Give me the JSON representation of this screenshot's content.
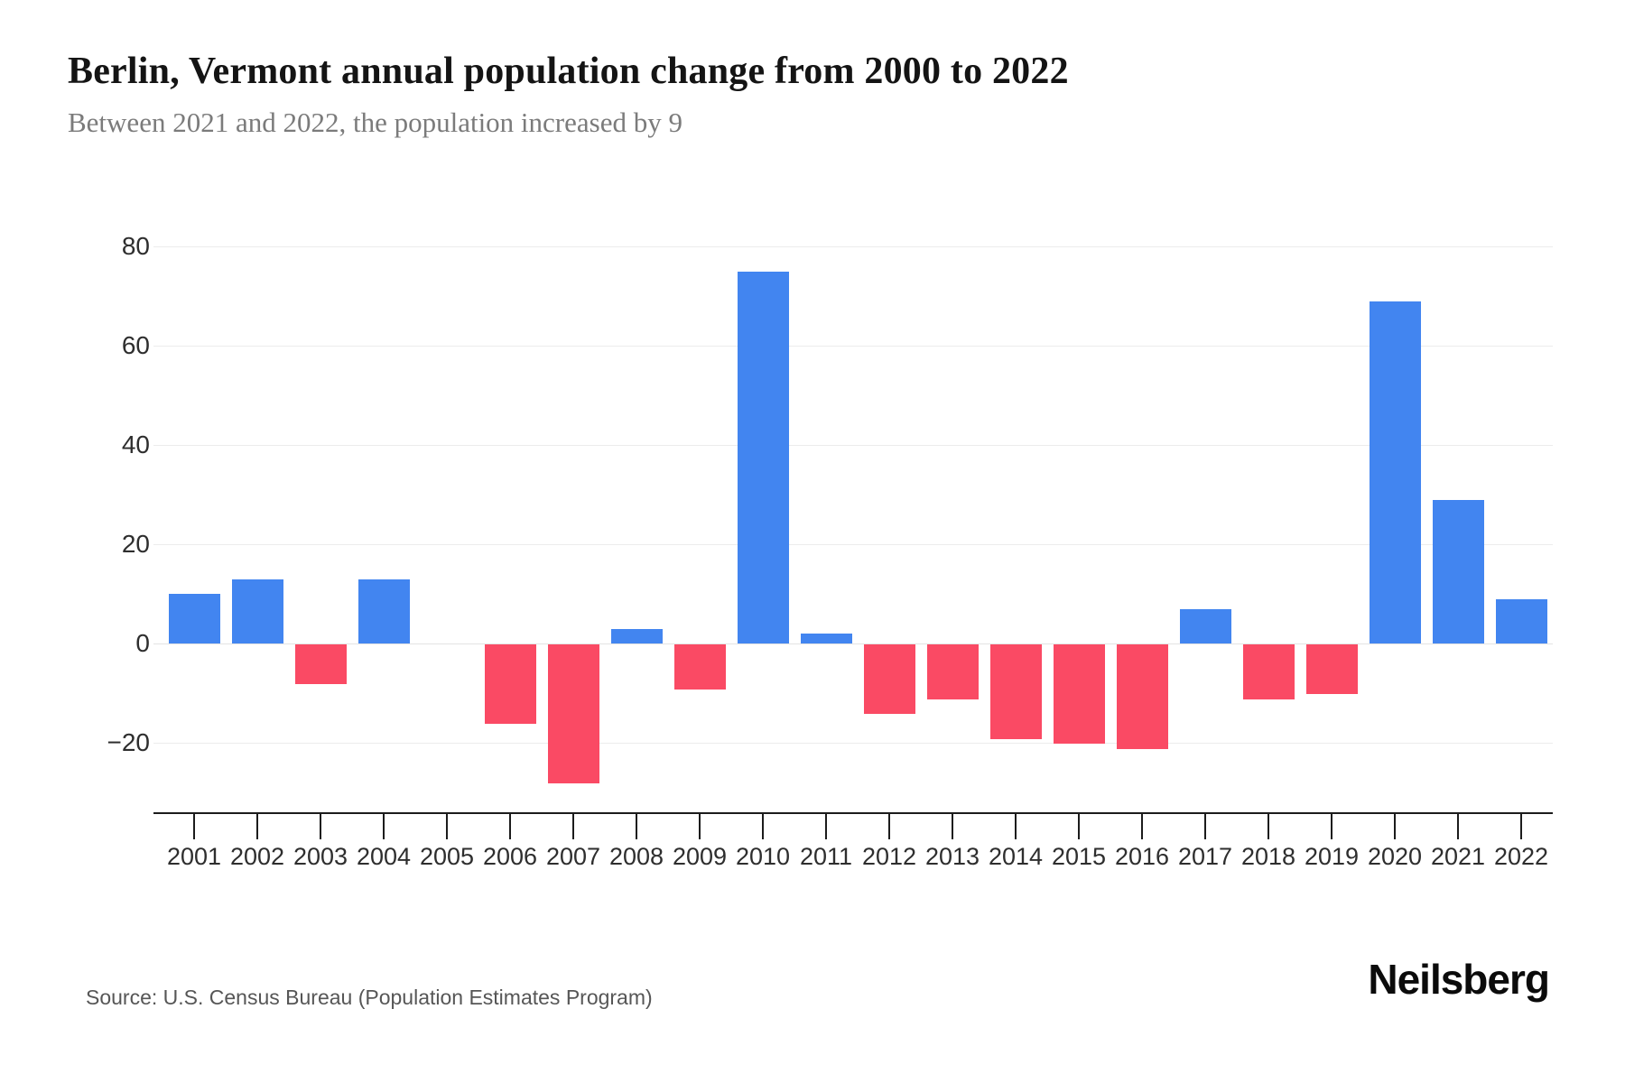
{
  "header": {
    "title": "Berlin, Vermont annual population change from 2000 to 2022",
    "subtitle": "Between 2021 and 2022, the population increased by 9"
  },
  "chart_data": {
    "type": "bar",
    "title": "Berlin, Vermont annual population change from 2000 to 2022",
    "xlabel": "",
    "ylabel": "",
    "categories": [
      "2001",
      "2002",
      "2003",
      "2004",
      "2005",
      "2006",
      "2007",
      "2008",
      "2009",
      "2010",
      "2011",
      "2012",
      "2013",
      "2014",
      "2015",
      "2016",
      "2017",
      "2018",
      "2019",
      "2020",
      "2021",
      "2022"
    ],
    "values": [
      10,
      13,
      -8,
      13,
      0,
      -16,
      -28,
      3,
      -9,
      75,
      2,
      -14,
      -11,
      -19,
      -20,
      -21,
      7,
      -11,
      -10,
      69,
      29,
      9
    ],
    "y_ticks": [
      80,
      60,
      40,
      20,
      0,
      -20
    ],
    "y_tick_labels": [
      "80",
      "60",
      "40",
      "20",
      "0",
      "−20"
    ],
    "ylim": [
      -34,
      86
    ],
    "grid": "horizontal",
    "legend": "none",
    "positive_color": "#4285f0",
    "negative_color": "#fa4a64"
  },
  "footer": {
    "source": "Source: U.S. Census Bureau (Population Estimates Program)",
    "brand": "Neilsberg"
  }
}
